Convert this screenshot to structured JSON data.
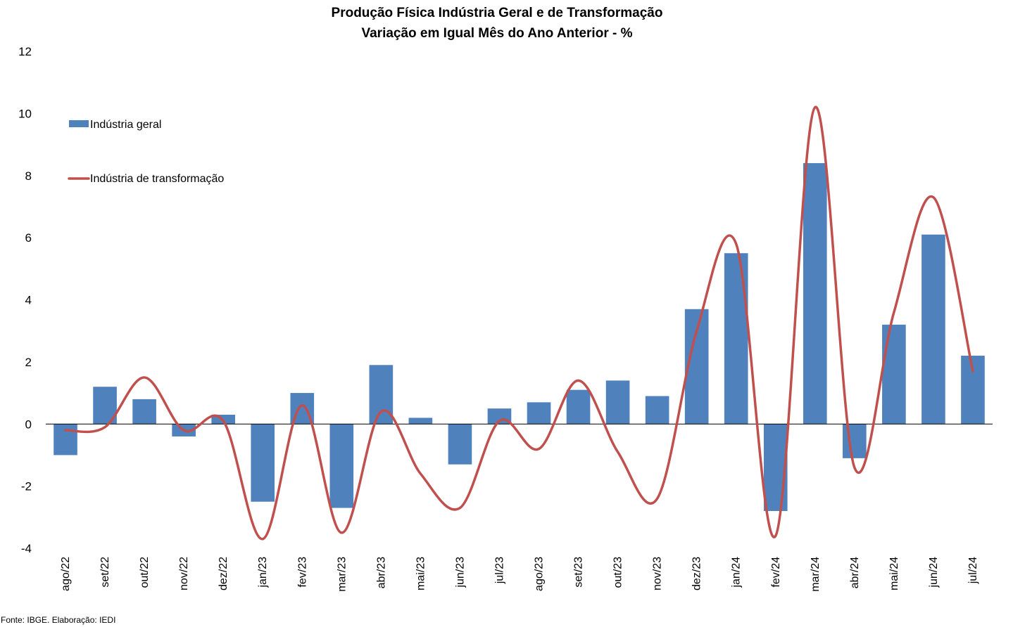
{
  "chart_data": {
    "type": "bar",
    "title": "Produção Física Indústria Geral e de Transformação",
    "subtitle": "Variação em Igual Mês do Ano Anterior - %",
    "categories": [
      "ago/22",
      "set/22",
      "out/22",
      "nov/22",
      "dez/22",
      "jan/23",
      "fev/23",
      "mar/23",
      "abr/23",
      "mai/23",
      "jun/23",
      "jul/23",
      "ago/23",
      "set/23",
      "out/23",
      "nov/23",
      "dez/23",
      "jan/24",
      "fev/24",
      "mar/24",
      "abr/24",
      "mai/24",
      "jun/24",
      "jul/24"
    ],
    "series": [
      {
        "name": "Indústria geral",
        "type": "bar",
        "color": "#4f81bd",
        "values": [
          -1.0,
          1.2,
          0.8,
          -0.4,
          0.3,
          -2.5,
          1.0,
          -2.7,
          1.9,
          0.2,
          -1.3,
          0.5,
          0.7,
          1.1,
          1.4,
          0.9,
          3.7,
          5.5,
          -2.8,
          8.4,
          -1.1,
          3.2,
          6.1,
          2.2
        ]
      },
      {
        "name": "Indústria de transformação",
        "type": "line",
        "smooth": true,
        "color": "#c0504d",
        "values": [
          -0.2,
          -0.1,
          1.5,
          -0.2,
          0.1,
          -3.7,
          0.6,
          -3.5,
          0.4,
          -1.6,
          -2.7,
          0.1,
          -0.8,
          1.4,
          -0.9,
          -2.4,
          3.0,
          5.8,
          -3.6,
          10.2,
          -1.4,
          3.6,
          7.3,
          1.7
        ]
      }
    ],
    "ylim": [
      -4,
      12
    ],
    "yticks": [
      "-4",
      "-2",
      "0",
      "2",
      "4",
      "6",
      "8",
      "10",
      "12"
    ],
    "xlabel": "",
    "ylabel": "",
    "grid": false,
    "legend_position": "top-left",
    "source": "Fonte: IBGE. Elaboração: IEDI"
  }
}
